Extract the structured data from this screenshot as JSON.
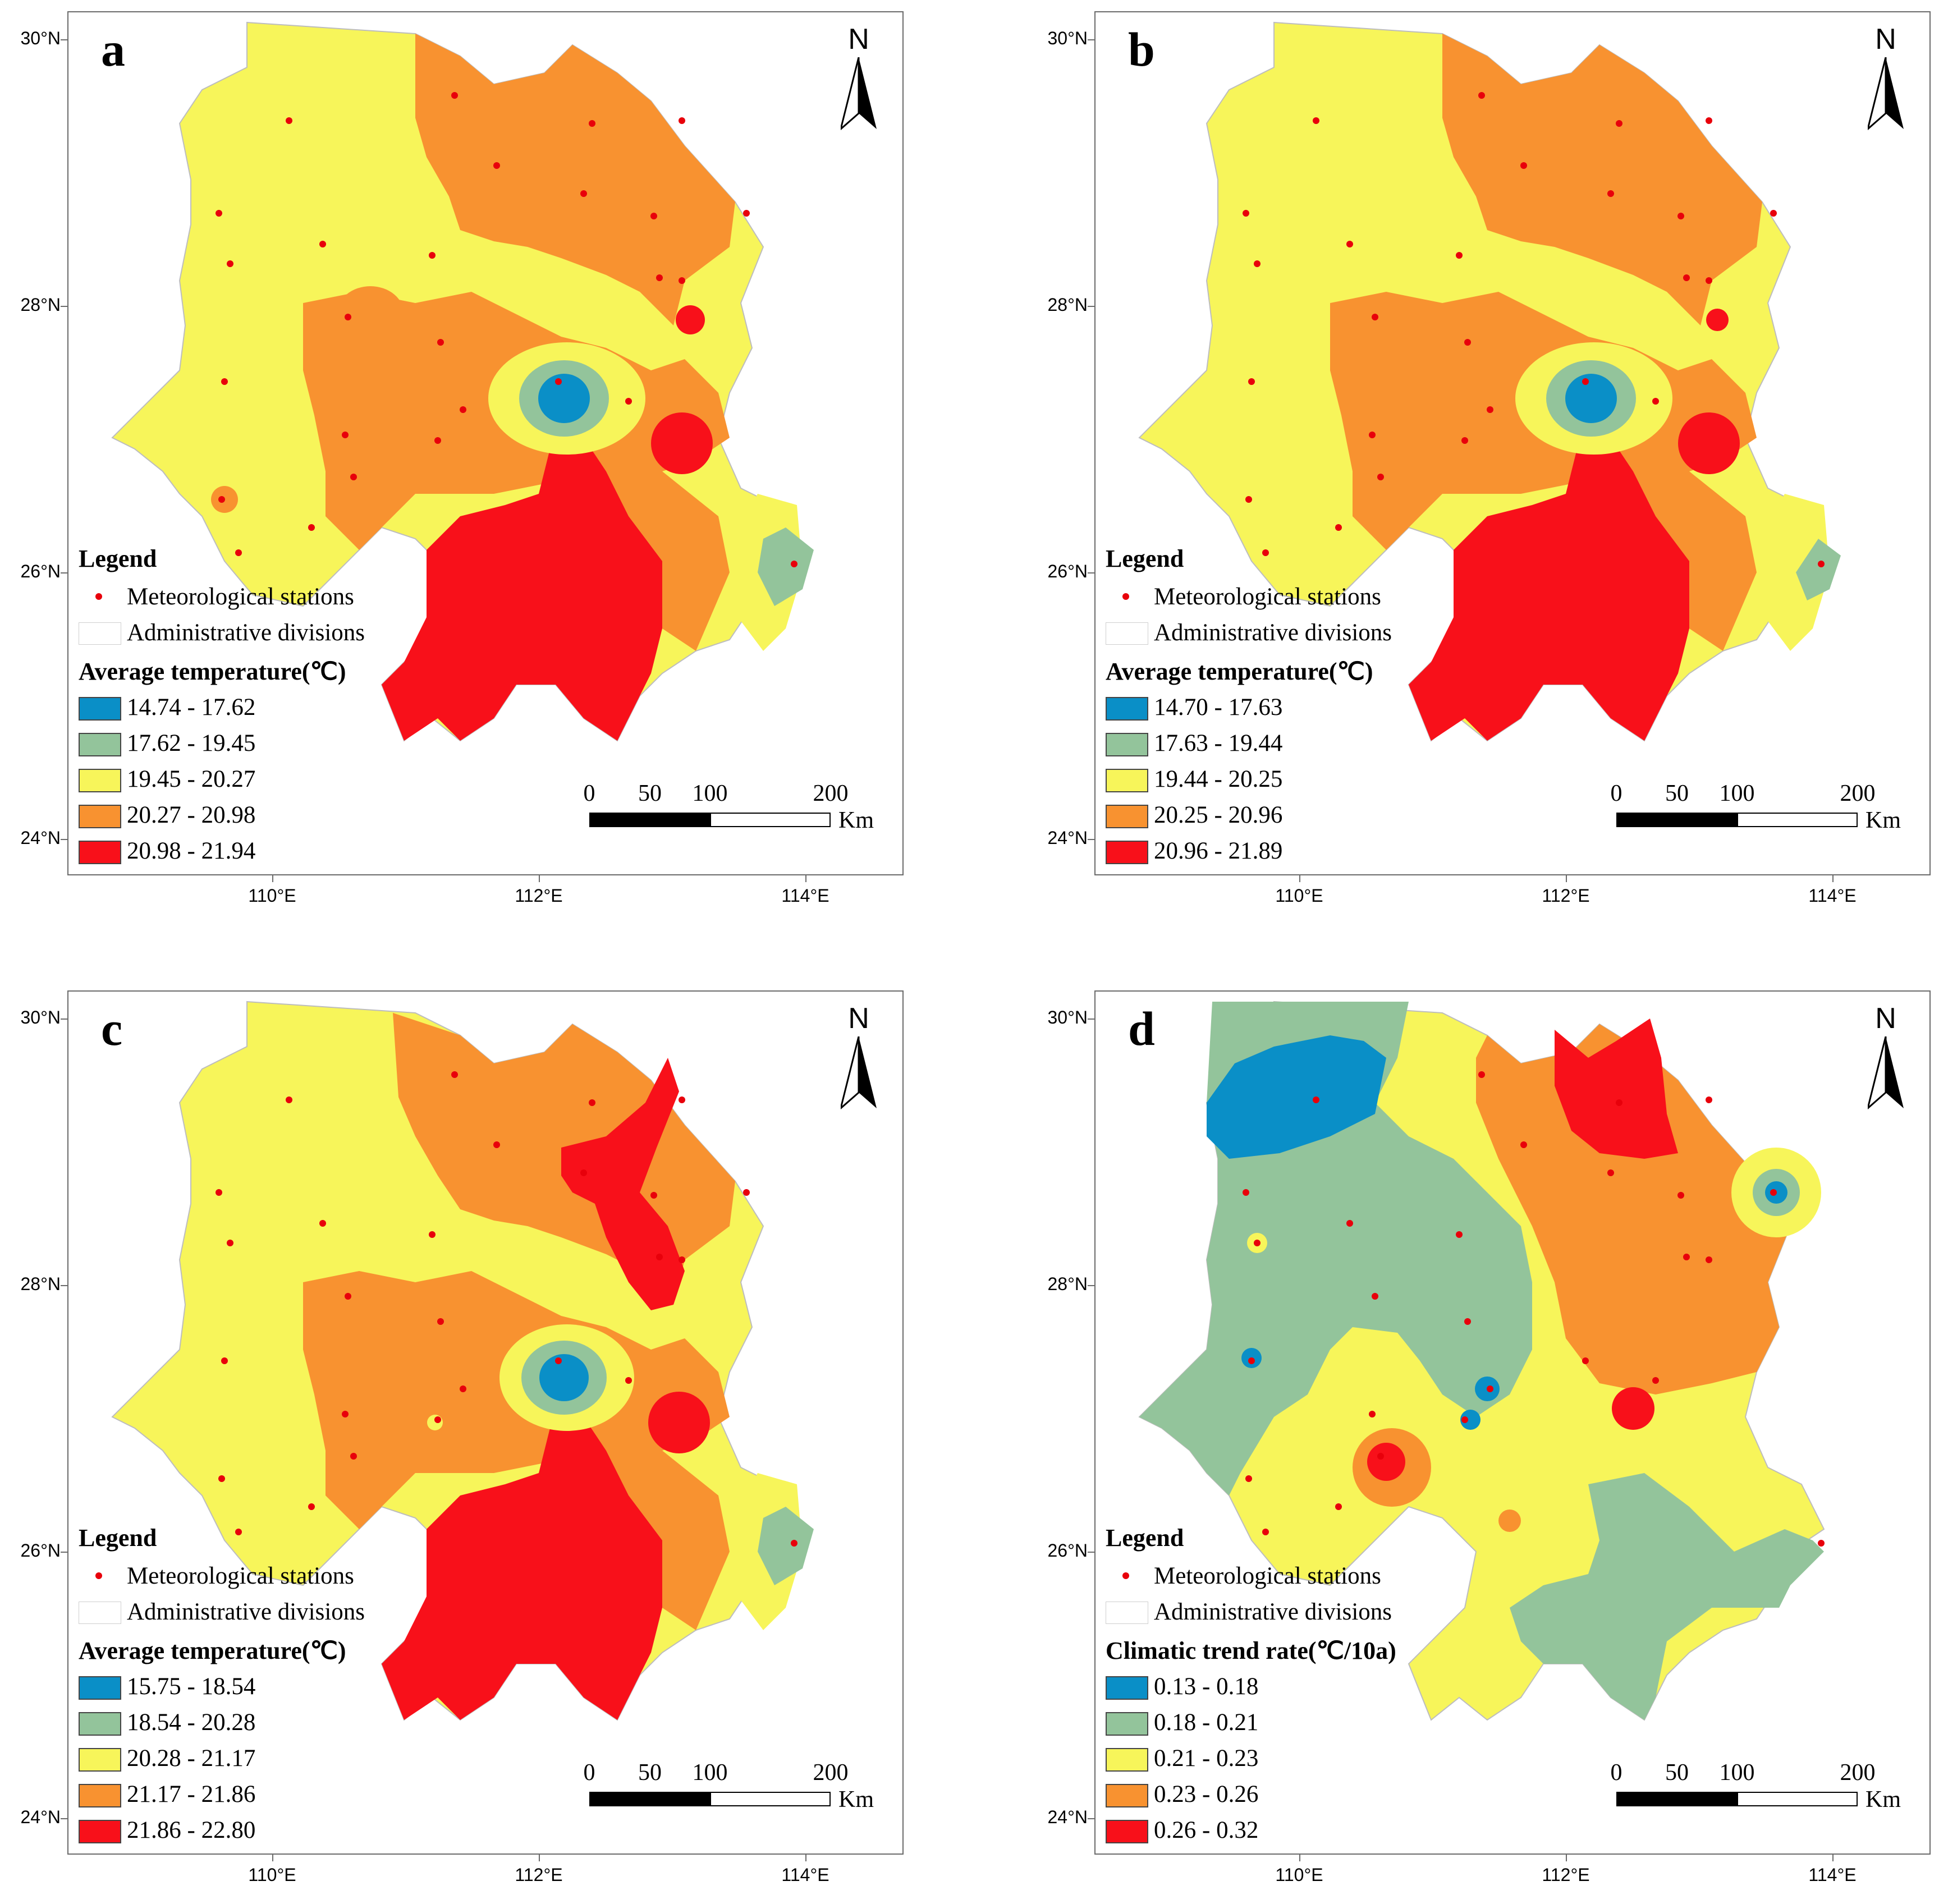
{
  "axes": {
    "lat_labels": [
      "30°N",
      "28°N",
      "26°N",
      "24°N"
    ],
    "lon_labels": [
      "110°E",
      "112°E",
      "114°E"
    ]
  },
  "north_arrow": {
    "letter": "N",
    "icon": "north-arrow-icon"
  },
  "scale_bar": {
    "ticks": [
      "0",
      "50",
      "100",
      "200"
    ],
    "unit": "Km"
  },
  "legend_common": {
    "title": "Legend",
    "stations": "Meteorological stations",
    "admin": "Administrative divisions"
  },
  "colors": {
    "class1": "#0a8fc7",
    "class2": "#93c49b",
    "class3": "#f7f55a",
    "class4": "#f89230",
    "class5": "#f8101a",
    "station": "#e8000b"
  },
  "panels": [
    {
      "id": "a",
      "legend_title": "Average temperature(℃)",
      "classes": [
        "14.74 - 17.62",
        "17.62 - 19.45",
        "19.45 - 20.27",
        "20.27 - 20.98",
        "20.98 - 21.94"
      ]
    },
    {
      "id": "b",
      "legend_title": "Average temperature(℃)",
      "classes": [
        "14.70 - 17.63",
        "17.63 - 19.44",
        "19.44 - 20.25",
        "20.25 - 20.96",
        "20.96 - 21.89"
      ]
    },
    {
      "id": "c",
      "legend_title": "Average temperature(℃)",
      "classes": [
        "15.75 - 18.54",
        "18.54 - 20.28",
        "20.28 - 21.17",
        "21.17 - 21.86",
        "21.86 - 22.80"
      ]
    },
    {
      "id": "d",
      "legend_title": "Climatic trend rate(℃/10a)",
      "classes": [
        "0.13 - 0.18",
        "0.18 - 0.21",
        "0.21 - 0.23",
        "0.23 - 0.26",
        "0.26 - 0.32"
      ]
    }
  ]
}
